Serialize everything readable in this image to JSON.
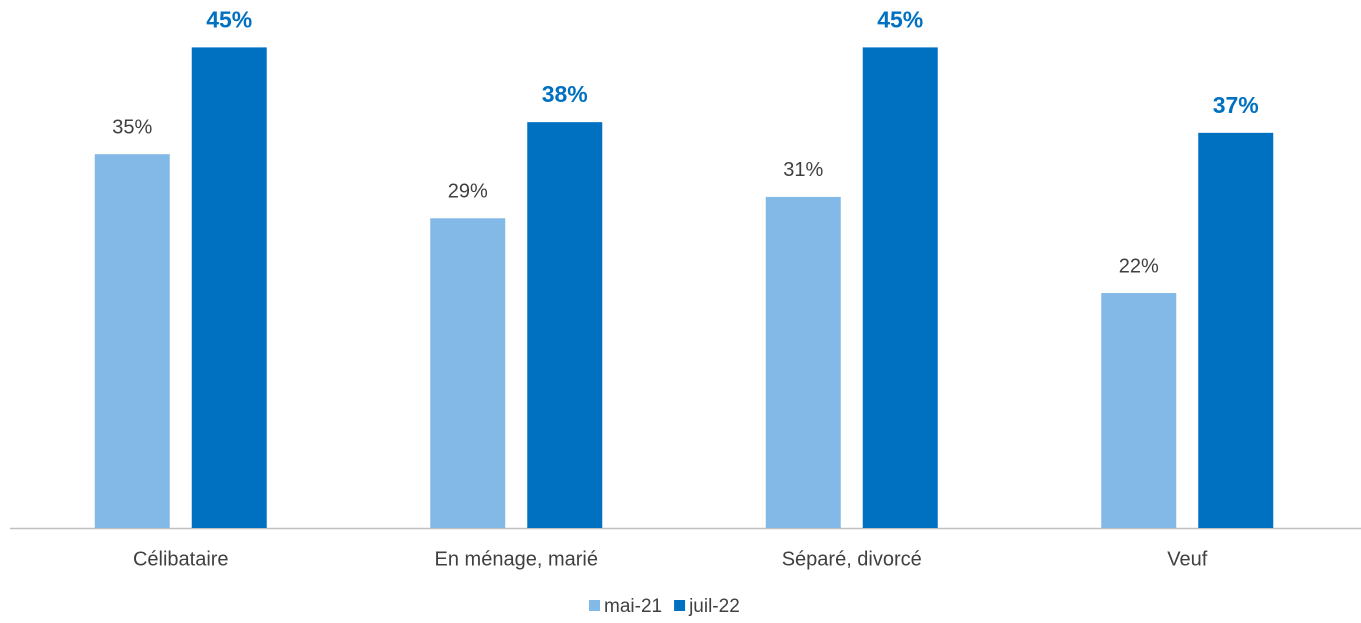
{
  "chart_data": {
    "type": "bar",
    "categories": [
      "Célibataire",
      "En ménage, marié",
      "Séparé, divorcé",
      "Veuf"
    ],
    "series": [
      {
        "name": "mai-21",
        "color": "#83b9e6",
        "values": [
          35,
          29,
          31,
          22
        ],
        "value_labels": [
          "35%",
          "29%",
          "31%",
          "22%"
        ]
      },
      {
        "name": "juil-22",
        "color": "#0070c0",
        "values": [
          45,
          38,
          45,
          37
        ],
        "value_labels": [
          "45%",
          "38%",
          "45%",
          "37%"
        ]
      }
    ],
    "ylim": [
      0,
      50
    ]
  }
}
